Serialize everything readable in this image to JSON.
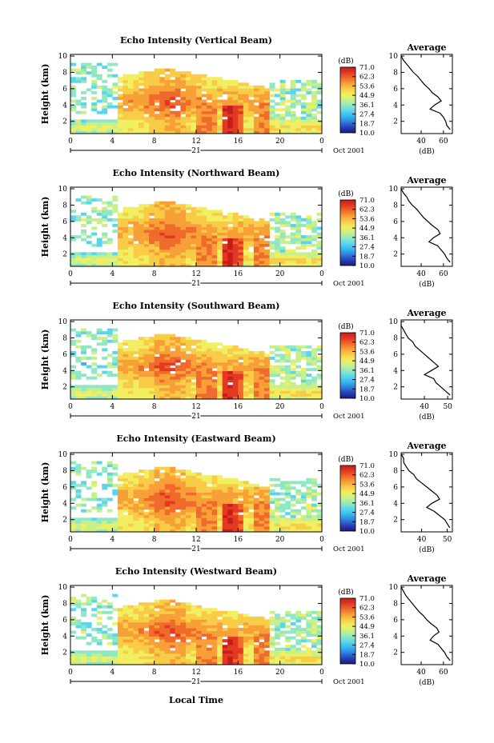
{
  "figure": {
    "bottom_xlabel": "Local Time"
  },
  "colors": {
    "scale": [
      "#1a1a7e",
      "#2a3fb8",
      "#2f7fdc",
      "#36b6f0",
      "#58d6ee",
      "#8fe8c2",
      "#c8f08a",
      "#f1ee61",
      "#f9cc48",
      "#f7a038",
      "#f06a2c",
      "#e23a22",
      "#c61d1a"
    ],
    "profile_line": "#000000"
  },
  "chart_data": [
    {
      "type": "heatmap",
      "title": "Echo Intensity (Vertical Beam)",
      "ylabel": "Height (km)",
      "xlim": [
        0,
        24
      ],
      "ylim": [
        0.5,
        10.2
      ],
      "xticks": [
        "0",
        "4",
        "8",
        "12",
        "16",
        "20",
        "0"
      ],
      "yticks": [
        "2",
        "4",
        "6",
        "8",
        "10"
      ],
      "date_day": "21",
      "date_month": "Oct 2001",
      "colorbar_unit": "(dB)",
      "colorbar_ticks": [
        "71.0",
        "62.3",
        "53.6",
        "44.9",
        "36.1",
        "27.4",
        "18.7",
        "10.0"
      ],
      "profile": {
        "title": "Average",
        "xlabel": "(dB)",
        "xticks": [
          "40",
          "60"
        ],
        "xlim": [
          22,
          68
        ],
        "heights": [
          1.0,
          1.5,
          2.0,
          2.5,
          3.0,
          3.5,
          4.0,
          4.5,
          5.0,
          5.5,
          6.0,
          6.5,
          7.0,
          7.5,
          8.0,
          8.5,
          9.0,
          9.5,
          10.0
        ],
        "values": [
          66,
          63,
          62,
          60,
          57,
          48,
          52,
          58,
          55,
          50,
          47,
          43,
          40,
          37,
          33,
          30,
          27,
          24,
          22
        ]
      }
    },
    {
      "type": "heatmap",
      "title": "Echo Intensity (Northward Beam)",
      "ylabel": "Height (km)",
      "xlim": [
        0,
        24
      ],
      "ylim": [
        0.5,
        10.2
      ],
      "xticks": [
        "0",
        "4",
        "8",
        "12",
        "16",
        "20",
        "0"
      ],
      "yticks": [
        "2",
        "4",
        "6",
        "8",
        "10"
      ],
      "date_day": "21",
      "date_month": "Oct 2001",
      "colorbar_unit": "(dB)",
      "colorbar_ticks": [
        "71.0",
        "62.3",
        "53.6",
        "44.9",
        "36.1",
        "27.4",
        "18.7",
        "10.0"
      ],
      "profile": {
        "title": "Average",
        "xlabel": "(dB)",
        "xticks": [
          "40",
          "60"
        ],
        "xlim": [
          22,
          68
        ],
        "heights": [
          1.0,
          1.5,
          2.0,
          2.5,
          3.0,
          3.5,
          4.0,
          4.5,
          5.0,
          5.5,
          6.0,
          6.5,
          7.0,
          7.5,
          8.0,
          8.5,
          9.0,
          9.5,
          10.0
        ],
        "values": [
          66,
          63,
          61,
          58,
          55,
          47,
          51,
          57,
          55,
          50,
          46,
          42,
          39,
          36,
          32,
          29,
          27,
          24,
          22
        ]
      }
    },
    {
      "type": "heatmap",
      "title": "Echo Intensity (Southward Beam)",
      "ylabel": "Height (km)",
      "xlim": [
        0,
        24
      ],
      "ylim": [
        0.5,
        10.2
      ],
      "xticks": [
        "0",
        "4",
        "8",
        "12",
        "16",
        "20",
        "0"
      ],
      "yticks": [
        "2",
        "4",
        "6",
        "8",
        "10"
      ],
      "date_day": "21",
      "date_month": "Oct 2001",
      "colorbar_unit": "(dB)",
      "colorbar_ticks": [
        "71.0",
        "62.3",
        "53.6",
        "44.9",
        "36.1",
        "27.4",
        "18.7",
        "10.0"
      ],
      "profile": {
        "title": "Average",
        "xlabel": "(dB)",
        "xticks": [
          "40",
          "50"
        ],
        "xlim": [
          30,
          52
        ],
        "heights": [
          1.0,
          1.5,
          2.0,
          2.5,
          3.0,
          3.5,
          4.0,
          4.5,
          5.0,
          5.5,
          6.0,
          6.5,
          7.0,
          7.5,
          8.0,
          8.5,
          9.0,
          9.5,
          10.0
        ],
        "values": [
          51,
          49,
          47,
          45,
          44,
          40,
          43,
          46,
          44,
          42,
          40,
          38,
          36,
          35,
          33,
          32,
          31,
          30,
          30
        ]
      }
    },
    {
      "type": "heatmap",
      "title": "Echo Intensity (Eastward Beam)",
      "ylabel": "Height (km)",
      "xlim": [
        0,
        24
      ],
      "ylim": [
        0.5,
        10.2
      ],
      "xticks": [
        "0",
        "4",
        "8",
        "12",
        "16",
        "20",
        "0"
      ],
      "yticks": [
        "2",
        "4",
        "6",
        "8",
        "10"
      ],
      "date_day": "21",
      "date_month": "Oct 2001",
      "colorbar_unit": "(dB)",
      "colorbar_ticks": [
        "71.0",
        "62.3",
        "53.6",
        "44.9",
        "36.1",
        "27.4",
        "18.7",
        "10.0"
      ],
      "profile": {
        "title": "Average",
        "xlabel": "(dB)",
        "xticks": [
          "40",
          "50"
        ],
        "xlim": [
          32,
          52
        ],
        "heights": [
          1.0,
          1.5,
          2.0,
          2.5,
          3.0,
          3.5,
          4.0,
          4.5,
          5.0,
          5.5,
          6.0,
          6.5,
          7.0,
          7.5,
          8.0,
          8.5,
          9.0,
          9.5,
          10.0
        ],
        "values": [
          51,
          50,
          49,
          47,
          45,
          42,
          44,
          47,
          46,
          44,
          42,
          40,
          38,
          37,
          35,
          34,
          33,
          33,
          32
        ]
      }
    },
    {
      "type": "heatmap",
      "title": "Echo Intensity (Westward Beam)",
      "ylabel": "Height (km)",
      "xlim": [
        0,
        24
      ],
      "ylim": [
        0.5,
        10.2
      ],
      "xticks": [
        "0",
        "4",
        "8",
        "12",
        "16",
        "20",
        "0"
      ],
      "yticks": [
        "2",
        "4",
        "6",
        "8",
        "10"
      ],
      "date_day": "21",
      "date_month": "Oct 2001",
      "colorbar_unit": "(dB)",
      "colorbar_ticks": [
        "71.0",
        "62.3",
        "53.6",
        "44.9",
        "36.1",
        "27.4",
        "18.7",
        "10.0"
      ],
      "profile": {
        "title": "Average",
        "xlabel": "(dB)",
        "xticks": [
          "40",
          "60"
        ],
        "xlim": [
          22,
          68
        ],
        "heights": [
          1.0,
          1.5,
          2.0,
          2.5,
          3.0,
          3.5,
          4.0,
          4.5,
          5.0,
          5.5,
          6.0,
          6.5,
          7.0,
          7.5,
          8.0,
          8.5,
          9.0,
          9.5,
          10.0
        ],
        "values": [
          66,
          63,
          61,
          58,
          55,
          48,
          51,
          56,
          54,
          49,
          45,
          42,
          38,
          35,
          32,
          29,
          26,
          24,
          22
        ]
      }
    }
  ]
}
